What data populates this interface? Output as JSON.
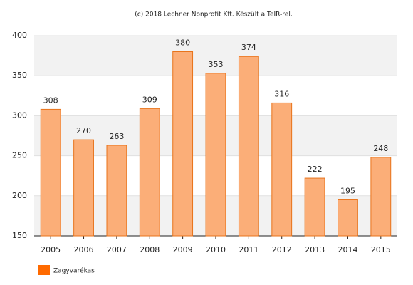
{
  "chart_data": {
    "type": "bar",
    "title": "(c) 2018 Lechner Nonprofit Kft. Készült a TeIR-rel.",
    "categories": [
      "2005",
      "2006",
      "2007",
      "2008",
      "2009",
      "2010",
      "2011",
      "2012",
      "2013",
      "2014",
      "2015"
    ],
    "series": [
      {
        "name": "Zagyvarékas",
        "color": "#ff6a00",
        "values": [
          308,
          270,
          263,
          309,
          380,
          353,
          374,
          316,
          222,
          195,
          248
        ]
      }
    ],
    "ylim": [
      150,
      400
    ],
    "yticks": [
      150,
      200,
      250,
      300,
      350,
      400
    ],
    "grid": true
  }
}
